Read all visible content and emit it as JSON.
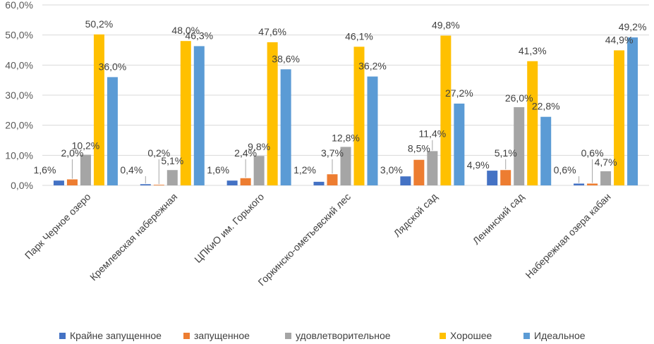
{
  "chart_data": {
    "type": "bar",
    "categories": [
      "Парк Черное озеро",
      "Кремлевская набережная",
      "ЦПКиО им. Горького",
      "Горкинско-ометьевский лес",
      "Лядской сад",
      "Ленинский сад",
      "Набережная озера кабан"
    ],
    "series": [
      {
        "name": "Крайне запущенное",
        "color": "#4472c4",
        "values": [
          1.6,
          0.4,
          1.6,
          1.2,
          3.0,
          4.9,
          0.6
        ]
      },
      {
        "name": "запущенное",
        "color": "#ed7d31",
        "values": [
          2.0,
          0.2,
          2.4,
          3.7,
          8.5,
          5.1,
          0.6
        ]
      },
      {
        "name": "удовлетворительное",
        "color": "#a5a5a5",
        "values": [
          10.2,
          5.1,
          9.8,
          12.8,
          11.4,
          26.0,
          4.7
        ]
      },
      {
        "name": "Хорошее",
        "color": "#ffc000",
        "values": [
          50.2,
          48.0,
          47.6,
          46.1,
          49.8,
          41.3,
          44.9
        ]
      },
      {
        "name": "Идеальное",
        "color": "#5b9bd5",
        "values": [
          36.0,
          46.3,
          38.6,
          36.2,
          27.2,
          22.8,
          49.2
        ]
      }
    ],
    "data_labels": [
      [
        "1,6%",
        "2,0%",
        "10,2%",
        "50,2%",
        "36,0%"
      ],
      [
        "0,4%",
        "0,2%",
        "5,1%",
        "48,0%",
        "46,3%"
      ],
      [
        "1,6%",
        "2,4%",
        "9,8%",
        "47,6%",
        "38,6%"
      ],
      [
        "1,2%",
        "3,7%",
        "12,8%",
        "46,1%",
        "36,2%"
      ],
      [
        "3,0%",
        "8,5%",
        "11,4%",
        "49,8%",
        "27,2%"
      ],
      [
        "4,9%",
        "5,1%",
        "26,0%",
        "41,3%",
        "22,8%"
      ],
      [
        "0,6%",
        "0,6%",
        "4,7%",
        "44,9%",
        "49,2%"
      ]
    ],
    "y_ticks": [
      "0,0%",
      "10,0%",
      "20,0%",
      "30,0%",
      "40,0%",
      "50,0%",
      "60,0%"
    ],
    "ylim": [
      0,
      60
    ],
    "title": "",
    "xlabel": "",
    "ylabel": "",
    "grid": true,
    "legend_position": "bottom"
  }
}
